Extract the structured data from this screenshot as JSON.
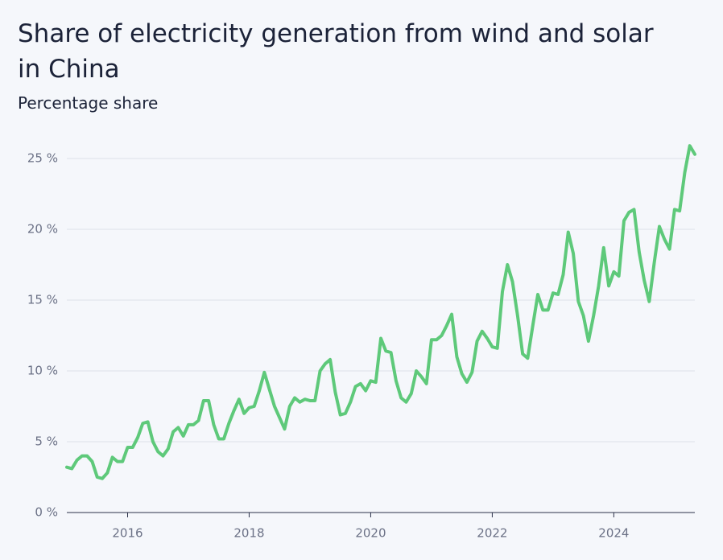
{
  "chart_data": {
    "type": "line",
    "title": "Share of electricity generation from wind and solar in China",
    "subtitle": "Percentage share",
    "x": [
      2015.0,
      2015.083,
      2015.167,
      2015.25,
      2015.333,
      2015.417,
      2015.5,
      2015.583,
      2015.667,
      2015.75,
      2015.833,
      2015.917,
      2016.0,
      2016.083,
      2016.167,
      2016.25,
      2016.333,
      2016.417,
      2016.5,
      2016.583,
      2016.667,
      2016.75,
      2016.833,
      2016.917,
      2017.0,
      2017.083,
      2017.167,
      2017.25,
      2017.333,
      2017.417,
      2017.5,
      2017.583,
      2017.667,
      2017.75,
      2017.833,
      2017.917,
      2018.0,
      2018.083,
      2018.167,
      2018.25,
      2018.333,
      2018.417,
      2018.5,
      2018.583,
      2018.667,
      2018.75,
      2018.833,
      2018.917,
      2019.0,
      2019.083,
      2019.167,
      2019.25,
      2019.333,
      2019.417,
      2019.5,
      2019.583,
      2019.667,
      2019.75,
      2019.833,
      2019.917,
      2020.0,
      2020.083,
      2020.167,
      2020.25,
      2020.333,
      2020.417,
      2020.5,
      2020.583,
      2020.667,
      2020.75,
      2020.833,
      2020.917,
      2021.0,
      2021.083,
      2021.167,
      2021.25,
      2021.333,
      2021.417,
      2021.5,
      2021.583,
      2021.667,
      2021.75,
      2021.833,
      2021.917,
      2022.0,
      2022.083,
      2022.167,
      2022.25,
      2022.333,
      2022.417,
      2022.5,
      2022.583,
      2022.667,
      2022.75,
      2022.833,
      2022.917,
      2023.0,
      2023.083,
      2023.167,
      2023.25,
      2023.333,
      2023.417,
      2023.5,
      2023.583,
      2023.667,
      2023.75,
      2023.833,
      2023.917,
      2024.0,
      2024.083,
      2024.167,
      2024.25,
      2024.333,
      2024.417,
      2024.5,
      2024.583,
      2024.667,
      2024.75,
      2024.833,
      2024.917,
      2025.0,
      2025.083,
      2025.167,
      2025.25,
      2025.333
    ],
    "values": [
      3.2,
      3.1,
      3.7,
      4.0,
      4.0,
      3.6,
      2.5,
      2.4,
      2.8,
      3.9,
      3.6,
      3.6,
      4.6,
      4.6,
      5.3,
      6.3,
      6.4,
      5.0,
      4.3,
      4.0,
      4.5,
      5.7,
      6.0,
      5.4,
      6.2,
      6.2,
      6.5,
      7.9,
      7.9,
      6.2,
      5.2,
      5.2,
      6.3,
      7.2,
      8.0,
      7.0,
      7.4,
      7.5,
      8.6,
      9.9,
      8.7,
      7.5,
      6.7,
      5.9,
      7.5,
      8.1,
      7.8,
      8.0,
      7.9,
      7.9,
      10.0,
      10.5,
      10.8,
      8.5,
      6.9,
      7.0,
      7.8,
      8.9,
      9.1,
      8.6,
      9.3,
      9.2,
      12.3,
      11.4,
      11.3,
      9.3,
      8.1,
      7.8,
      8.4,
      10.0,
      9.6,
      9.1,
      12.2,
      12.2,
      12.5,
      13.2,
      14.0,
      11.0,
      9.8,
      9.2,
      9.9,
      12.1,
      12.8,
      12.3,
      11.7,
      11.6,
      15.6,
      17.5,
      16.3,
      13.9,
      11.2,
      10.9,
      13.2,
      15.4,
      14.3,
      14.3,
      15.5,
      15.4,
      16.8,
      19.8,
      18.3,
      14.9,
      13.9,
      12.1,
      13.9,
      16.0,
      18.7,
      16.0,
      17.0,
      16.7,
      20.6,
      21.2,
      21.4,
      18.4,
      16.4,
      14.9,
      17.7,
      20.2,
      19.3,
      18.6,
      21.4,
      21.3,
      24.0,
      25.9,
      25.3
    ],
    "color": "#5ec97a",
    "xlim": [
      2015.0,
      2025.333
    ],
    "xticks": [
      2016,
      2018,
      2020,
      2022,
      2024
    ],
    "ylim": [
      0,
      25
    ],
    "yticks": [
      {
        "value": 0,
        "label": "0 %"
      },
      {
        "value": 5,
        "label": "5 %"
      },
      {
        "value": 10,
        "label": "10 %"
      },
      {
        "value": 15,
        "label": "15 %"
      },
      {
        "value": 20,
        "label": "20 %"
      },
      {
        "value": 25,
        "label": "25 %"
      }
    ],
    "grid": true
  }
}
